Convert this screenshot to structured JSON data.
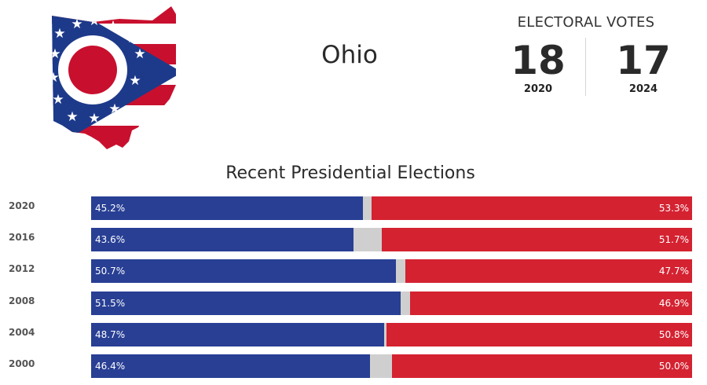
{
  "header": {
    "state_name": "Ohio",
    "state_logo_icon": "ohio-state-flag-silhouette-icon"
  },
  "electoral_votes": {
    "title": "ELECTORAL VOTES",
    "items": [
      {
        "value": "18",
        "year": "2020"
      },
      {
        "value": "17",
        "year": "2024"
      }
    ]
  },
  "colors": {
    "democrat": "#283f94",
    "republican": "#d42231",
    "other": "#cfcfcf"
  },
  "chart_data": {
    "type": "bar",
    "title": "Recent Presidential Elections",
    "orientation": "horizontal-stacked-100",
    "categories": [
      "2020",
      "2016",
      "2012",
      "2008",
      "2004",
      "2000"
    ],
    "series": [
      {
        "values": [
          45.2,
          43.6,
          50.7,
          51.5,
          48.7,
          46.4
        ],
        "labels": [
          "45.2%",
          "43.6%",
          "50.7%",
          "51.5%",
          "48.7%",
          "46.4%"
        ]
      },
      {
        "values": [
          53.3,
          51.7,
          47.7,
          46.9,
          50.8,
          50.0
        ],
        "labels": [
          "53.3%",
          "51.7%",
          "47.7%",
          "46.9%",
          "50.8%",
          "50.0%"
        ]
      }
    ],
    "xlim": [
      0,
      100
    ]
  }
}
